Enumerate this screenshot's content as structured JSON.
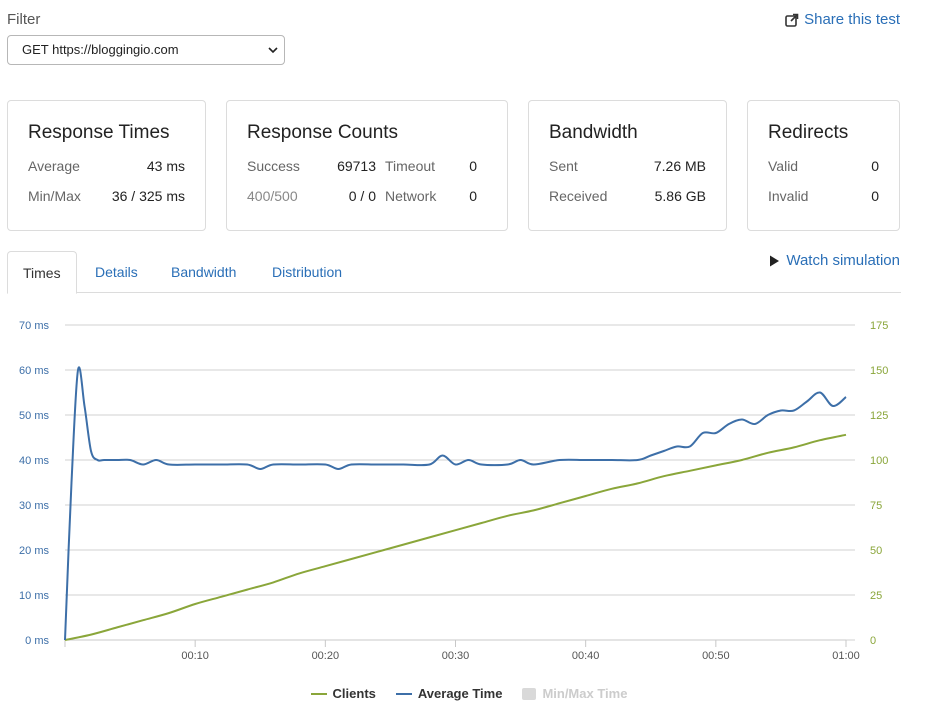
{
  "filter": {
    "label": "Filter",
    "selected": "GET https://bloggingio.com"
  },
  "share": {
    "label": "Share this test"
  },
  "cards": {
    "response_times": {
      "title": "Response Times",
      "average_label": "Average",
      "average_value": "43 ms",
      "minmax_label": "Min/Max",
      "minmax_value": "36 / 325 ms"
    },
    "response_counts": {
      "title": "Response Counts",
      "success_label": "Success",
      "success_value": "69713",
      "timeout_label": "Timeout",
      "timeout_value": "0",
      "errors_label": "400/500",
      "errors_value": "0 / 0",
      "network_label": "Network",
      "network_value": "0"
    },
    "bandwidth": {
      "title": "Bandwidth",
      "sent_label": "Sent",
      "sent_value": "7.26 MB",
      "received_label": "Received",
      "received_value": "5.86 GB"
    },
    "redirects": {
      "title": "Redirects",
      "valid_label": "Valid",
      "valid_value": "0",
      "invalid_label": "Invalid",
      "invalid_value": "0"
    }
  },
  "tabs": [
    {
      "label": "Times",
      "active": true
    },
    {
      "label": "Details",
      "active": false
    },
    {
      "label": "Bandwidth",
      "active": false
    },
    {
      "label": "Distribution",
      "active": false
    }
  ],
  "watch": {
    "label": "Watch simulation"
  },
  "colors": {
    "link": "#2a6fb7",
    "clients": "#8aa63a",
    "average": "#3d6fa8",
    "grid": "#d0d0d0",
    "minmax": "#d9d9d9"
  },
  "chart_data": {
    "type": "line",
    "x_ticks": [
      "00:10",
      "00:20",
      "00:30",
      "00:40",
      "00:50",
      "01:00"
    ],
    "x_range": [
      0,
      60
    ],
    "y_left": {
      "ticks": [
        "0 ms",
        "10 ms",
        "20 ms",
        "30 ms",
        "40 ms",
        "50 ms",
        "60 ms",
        "70 ms"
      ],
      "range": [
        0,
        70
      ]
    },
    "y_right": {
      "ticks": [
        "0",
        "25",
        "50",
        "75",
        "100",
        "125",
        "150",
        "175"
      ],
      "range": [
        0,
        175
      ]
    },
    "grid": true,
    "legend_placement": "bottom",
    "legend": [
      {
        "name": "Clients",
        "shape": "line",
        "enabled": true
      },
      {
        "name": "Average Time",
        "shape": "line",
        "enabled": true
      },
      {
        "name": "Min/Max Time",
        "shape": "box",
        "enabled": false
      }
    ],
    "series": [
      {
        "name": "Clients",
        "axis": "right",
        "x": [
          0,
          2,
          4,
          6,
          8,
          10,
          12,
          14,
          16,
          18,
          20,
          22,
          24,
          26,
          28,
          30,
          32,
          34,
          36,
          38,
          40,
          42,
          44,
          46,
          48,
          50,
          52,
          54,
          56,
          58,
          60
        ],
        "values": [
          0,
          3,
          7,
          11,
          15,
          20,
          24,
          28,
          32,
          37,
          41,
          45,
          49,
          53,
          57,
          61,
          65,
          69,
          72,
          76,
          80,
          84,
          87,
          91,
          94,
          97,
          100,
          104,
          107,
          111,
          114
        ]
      },
      {
        "name": "Average Time",
        "axis": "left",
        "x": [
          0,
          0.5,
          1,
          1.5,
          2,
          2.5,
          3,
          4,
          5,
          6,
          7,
          8,
          10,
          12,
          14,
          15,
          16,
          18,
          20,
          21,
          22,
          24,
          26,
          28,
          29,
          30,
          31,
          32,
          34,
          35,
          36,
          38,
          40,
          42,
          44,
          45,
          46,
          47,
          48,
          49,
          50,
          51,
          52,
          53,
          54,
          55,
          56,
          57,
          58,
          59,
          60
        ],
        "values": [
          0,
          35,
          60,
          52,
          42,
          40,
          40,
          40,
          40,
          39,
          40,
          39,
          39,
          39,
          39,
          38,
          39,
          39,
          39,
          38,
          39,
          39,
          39,
          39,
          41,
          39,
          40,
          39,
          39,
          40,
          39,
          40,
          40,
          40,
          40,
          41,
          42,
          43,
          43,
          46,
          46,
          48,
          49,
          48,
          50,
          51,
          51,
          53,
          55,
          52,
          54
        ]
      }
    ]
  }
}
